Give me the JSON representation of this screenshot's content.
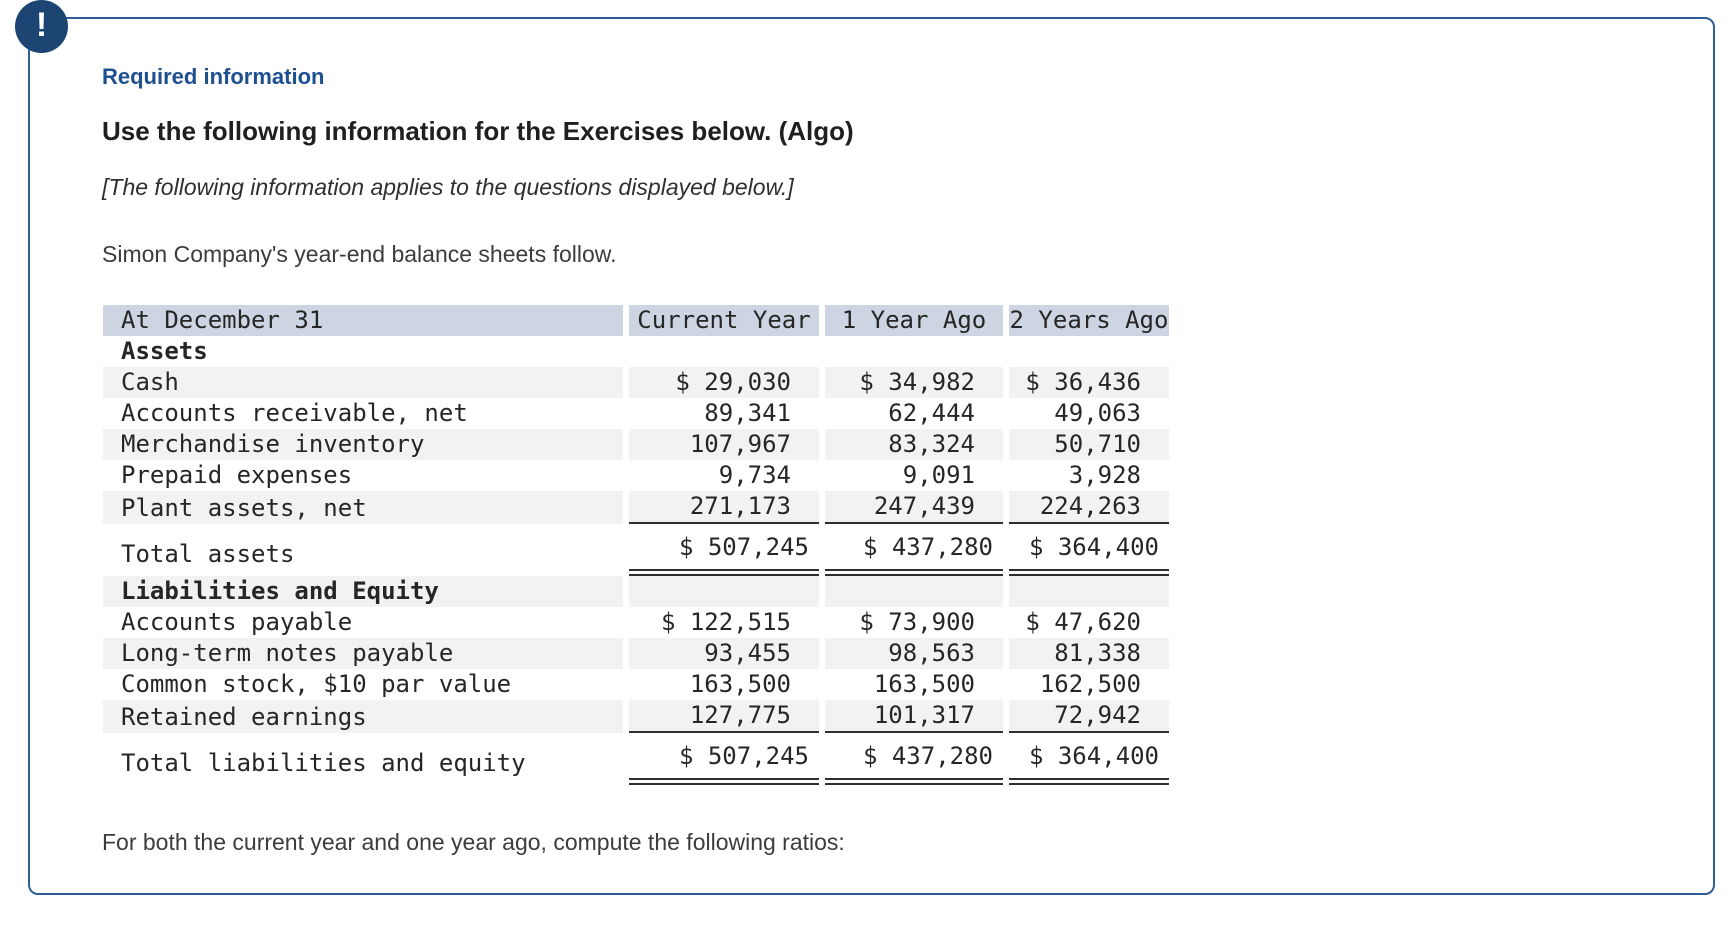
{
  "alert": {
    "icon": "exclamation",
    "required_label": "Required information",
    "title": "Use the following information for the Exercises below. (Algo)",
    "applies_note": "[The following information applies to the questions displayed below.]"
  },
  "intro": "Simon Company's year-end balance sheets follow.",
  "balance_sheet": {
    "columns": {
      "label": "At December 31",
      "current_year": "Current Year",
      "one_year_ago": "1 Year Ago",
      "two_years_ago": "2 Years Ago"
    },
    "assets": {
      "heading": "Assets",
      "rows": [
        {
          "label": "Cash",
          "cy": "$ 29,030",
          "y1": "$ 34,982",
          "y2": "$ 36,436"
        },
        {
          "label": "Accounts receivable, net",
          "cy": "89,341",
          "y1": "62,444",
          "y2": "49,063"
        },
        {
          "label": "Merchandise inventory",
          "cy": "107,967",
          "y1": "83,324",
          "y2": "50,710"
        },
        {
          "label": "Prepaid expenses",
          "cy": "9,734",
          "y1": "9,091",
          "y2": "3,928"
        },
        {
          "label": "Plant assets, net",
          "cy": "271,173",
          "y1": "247,439",
          "y2": "224,263"
        }
      ],
      "total": {
        "label": "Total assets",
        "cy": "$ 507,245",
        "y1": "$ 437,280",
        "y2": "$ 364,400"
      }
    },
    "liabilities_equity": {
      "heading": "Liabilities and Equity",
      "rows": [
        {
          "label": "Accounts payable",
          "cy": "$ 122,515",
          "y1": "$ 73,900",
          "y2": "$ 47,620"
        },
        {
          "label": "Long-term notes payable",
          "cy": "93,455",
          "y1": "98,563",
          "y2": "81,338"
        },
        {
          "label": "Common stock, $10 par value",
          "cy": "163,500",
          "y1": "163,500",
          "y2": "162,500"
        },
        {
          "label": "Retained earnings",
          "cy": "127,775",
          "y1": "101,317",
          "y2": "72,942"
        }
      ],
      "total": {
        "label": "Total liabilities and equity",
        "cy": "$ 507,245",
        "y1": "$ 437,280",
        "y2": "$ 364,400"
      }
    }
  },
  "footer": "For both the current year and one year ago, compute the following ratios:",
  "colors": {
    "box_border": "#2d5f96",
    "icon_circle": "#1d4574",
    "required_label": "#1e4f91",
    "table_header_bg": "#ccd5e1",
    "row_stripe_bg": "#f2f2f2"
  }
}
